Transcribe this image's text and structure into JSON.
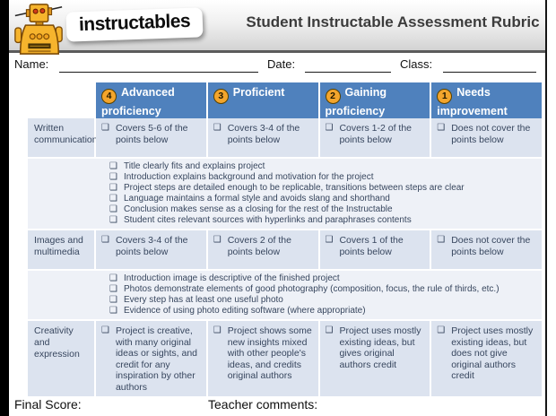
{
  "header": {
    "brand": "instructables",
    "title": "Student Instructable Assessment Rubric"
  },
  "fields": {
    "name_label": "Name:",
    "date_label": "Date:",
    "class_label": "Class:"
  },
  "table": {
    "columns": [
      {
        "score": "4",
        "label": "Advanced proficiency"
      },
      {
        "score": "3",
        "label": "Proficient"
      },
      {
        "score": "2",
        "label": "Gaining proficiency"
      },
      {
        "score": "1",
        "label": "Needs improvement"
      }
    ],
    "rows": [
      {
        "category": "Written communication",
        "cells": [
          "Covers 5-6 of the points below",
          "Covers 3-4 of the points below",
          "Covers 1-2 of the points below",
          "Does not cover the points below"
        ],
        "checklist": [
          "Title clearly fits and explains project",
          "Introduction explains background and motivation for the project",
          "Project steps are detailed enough to be replicable, transitions between steps are clear",
          "Language maintains a formal style and avoids slang and shorthand",
          "Conclusion makes sense as a closing for the rest of the Instructable",
          "Student cites relevant sources with hyperlinks and paraphrases contents"
        ]
      },
      {
        "category": "Images and multimedia",
        "cells": [
          "Covers 3-4 of the points below",
          "Covers 2 of the points below",
          "Covers 1 of the points below",
          "Does not cover the points below"
        ],
        "checklist": [
          "Introduction image is descriptive of the finished project",
          "Photos demonstrate elements of good photography (composition, focus, the rule of thirds, etc.)",
          "Every step has at least one useful photo",
          "Evidence of using photo editing software (where appropriate)"
        ]
      },
      {
        "category": "Creativity and expression",
        "cells": [
          "Project is creative, with many original ideas or sights, and credit for any inspiration by other authors",
          "Project shows some new insights mixed with other people's ideas, and credits original authors",
          "Project uses mostly existing ideas, but gives original authors credit",
          "Project uses mostly existing ideas, but does not give original authors credit"
        ],
        "checklist": []
      }
    ]
  },
  "footer": {
    "final_score_label": "Final Score:",
    "teacher_comments_label": "Teacher comments:"
  },
  "icons": {
    "checkbox": "❑"
  },
  "colors": {
    "header-blue": "#4f81bd",
    "badge-orange": "#f3a52c",
    "band-dark": "#dce3ef",
    "band-light": "#eef1f7",
    "table-text": "#37465e",
    "brand-yellow": "#f6b42d",
    "title-gray": "#3c3c3c"
  }
}
